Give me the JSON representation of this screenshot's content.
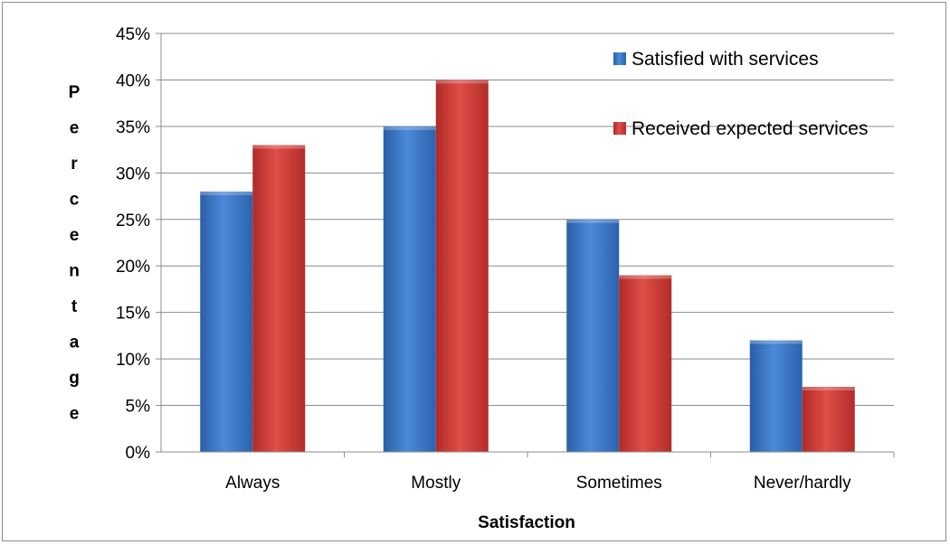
{
  "chart_data": {
    "type": "bar",
    "categories": [
      "Always",
      "Mostly",
      "Sometimes",
      "Never/hardly"
    ],
    "series": [
      {
        "name": "Satisfied with services",
        "values": [
          28,
          35,
          25,
          12
        ],
        "color": "#3a76c4"
      },
      {
        "name": "Received expected services",
        "values": [
          33,
          40,
          19,
          7
        ],
        "color": "#cc3a36"
      }
    ],
    "xlabel": "Satisfaction",
    "ylabel": "Percentage",
    "ylim": [
      0,
      45
    ],
    "yticks": [
      "0%",
      "5%",
      "10%",
      "15%",
      "20%",
      "25%",
      "30%",
      "35%",
      "40%",
      "45%"
    ],
    "grid": true,
    "legend_position": "top-right"
  }
}
